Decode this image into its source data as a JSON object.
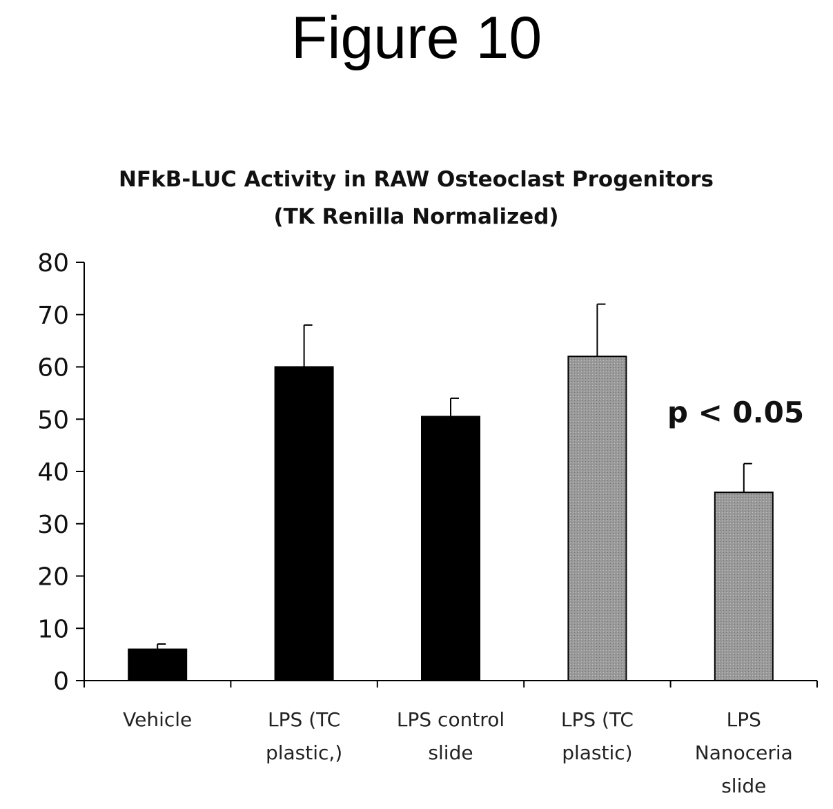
{
  "figure": {
    "heading": "Figure 10"
  },
  "chart_data": {
    "type": "bar",
    "title": [
      "NFkB-LUC Activity in RAW Osteoclast Progenitors",
      "(TK Renilla Normalized)"
    ],
    "xlabel": "",
    "ylabel": "",
    "ylim": [
      0,
      80
    ],
    "yticks": [
      0,
      10,
      20,
      30,
      40,
      50,
      60,
      70,
      80
    ],
    "grid": false,
    "categories": [
      [
        "Vehicle"
      ],
      [
        "LPS (TC",
        "plastic,)"
      ],
      [
        "LPS control",
        "slide"
      ],
      [
        "LPS (TC",
        "plastic)"
      ],
      [
        "LPS",
        "Nanoceria",
        "slide"
      ]
    ],
    "values": [
      6,
      60,
      50.5,
      62,
      36
    ],
    "error_upper": [
      7,
      68,
      54,
      72,
      41.5
    ],
    "bar_colors": [
      "#000000",
      "#000000",
      "#000000",
      "#8c8c8c",
      "#8c8c8c"
    ],
    "annotations": [
      {
        "text": "p < 0.05"
      }
    ]
  }
}
